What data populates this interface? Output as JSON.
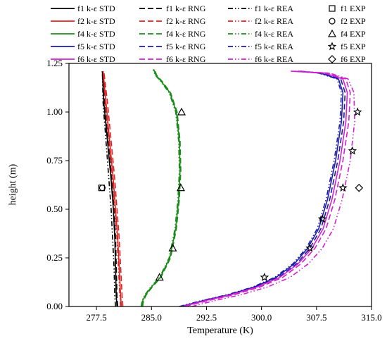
{
  "chart_data": {
    "type": "line",
    "xlabel": "Temperature (K)",
    "ylabel": "height (m)",
    "xlim": [
      273.75,
      315.0
    ],
    "ylim": [
      0.0,
      1.25
    ],
    "xticks": [
      "277.5",
      "285.0",
      "292.5",
      "300.0",
      "307.5",
      "315.0"
    ],
    "xtick_values": [
      277.5,
      285.0,
      292.5,
      300.0,
      307.5,
      315.0
    ],
    "yticks": [
      "0.00",
      "0.25",
      "0.50",
      "0.75",
      "1.00",
      "1.25"
    ],
    "ytick_values": [
      0.0,
      0.25,
      0.5,
      0.75,
      1.0,
      1.25
    ],
    "grid": false,
    "legend_position": "top",
    "colors": {
      "f1": "#000000",
      "f2": "#e02020",
      "f4": "#1a8c1a",
      "f5": "#1c1ca8",
      "f6": "#d21fd2"
    },
    "series": [
      {
        "name": "f1 k-ε STD",
        "case": "f1",
        "style": "solid",
        "x": [
          280.3,
          280.2,
          280.1,
          280.0,
          279.8,
          279.5,
          279.0,
          278.5,
          278.3
        ],
        "y": [
          0.0,
          0.05,
          0.2,
          0.35,
          0.5,
          0.65,
          0.85,
          1.05,
          1.21
        ]
      },
      {
        "name": "f1 k-ε RNG",
        "case": "f1",
        "style": "dash",
        "x": [
          280.4,
          280.3,
          280.2,
          280.1,
          279.9,
          279.6,
          279.1,
          278.6,
          278.35
        ],
        "y": [
          0.0,
          0.05,
          0.2,
          0.35,
          0.5,
          0.65,
          0.85,
          1.05,
          1.21
        ]
      },
      {
        "name": "f1 k-ε REA",
        "case": "f1",
        "style": "dashdotdot",
        "x": [
          280.1,
          280.0,
          279.9,
          279.7,
          279.5,
          279.2,
          278.8,
          278.4,
          278.3
        ],
        "y": [
          0.0,
          0.05,
          0.2,
          0.35,
          0.5,
          0.65,
          0.85,
          1.05,
          1.21
        ]
      },
      {
        "name": "f2 k-ε STD",
        "case": "f2",
        "style": "solid",
        "x": [
          280.9,
          280.8,
          280.6,
          280.4,
          280.1,
          279.8,
          279.3,
          278.8,
          278.4
        ],
        "y": [
          0.0,
          0.05,
          0.2,
          0.35,
          0.5,
          0.65,
          0.85,
          1.05,
          1.21
        ]
      },
      {
        "name": "f2 k-ε RNG",
        "case": "f2",
        "style": "dash",
        "x": [
          281.1,
          281.0,
          280.8,
          280.6,
          280.3,
          280.0,
          279.5,
          279.0,
          278.5
        ],
        "y": [
          0.0,
          0.05,
          0.2,
          0.35,
          0.5,
          0.65,
          0.85,
          1.05,
          1.21
        ]
      },
      {
        "name": "f2 k-ε REA",
        "case": "f2",
        "style": "dashdotdot",
        "x": [
          280.8,
          280.7,
          280.5,
          280.3,
          280.0,
          279.7,
          279.2,
          278.7,
          278.4
        ],
        "y": [
          0.0,
          0.05,
          0.2,
          0.35,
          0.5,
          0.65,
          0.85,
          1.05,
          1.21
        ]
      },
      {
        "name": "f4 k-ε STD",
        "case": "f4",
        "style": "solid",
        "x": [
          283.7,
          283.8,
          284.2,
          285.0,
          286.2,
          287.5,
          288.3,
          288.7,
          288.9,
          288.8,
          288.4,
          287.5,
          286.3,
          285.6,
          285.3
        ],
        "y": [
          0.0,
          0.03,
          0.06,
          0.1,
          0.15,
          0.25,
          0.4,
          0.55,
          0.7,
          0.85,
          1.0,
          1.1,
          1.16,
          1.19,
          1.22
        ]
      },
      {
        "name": "f4 k-ε RNG",
        "case": "f4",
        "style": "dash",
        "x": [
          283.8,
          283.9,
          284.3,
          285.1,
          286.3,
          287.6,
          288.4,
          288.8,
          289.0,
          288.9,
          288.5,
          287.6,
          286.4,
          285.7,
          285.4
        ],
        "y": [
          0.0,
          0.03,
          0.06,
          0.1,
          0.15,
          0.25,
          0.4,
          0.55,
          0.7,
          0.85,
          1.0,
          1.1,
          1.16,
          1.19,
          1.22
        ]
      },
      {
        "name": "f4 k-ε REA",
        "case": "f4",
        "style": "dashdotdot",
        "x": [
          283.6,
          283.7,
          284.1,
          284.9,
          286.1,
          287.4,
          288.2,
          288.6,
          288.8,
          288.7,
          288.3,
          287.4,
          286.2,
          285.5,
          285.2
        ],
        "y": [
          0.0,
          0.03,
          0.06,
          0.1,
          0.15,
          0.25,
          0.4,
          0.55,
          0.7,
          0.85,
          1.0,
          1.1,
          1.16,
          1.19,
          1.22
        ]
      },
      {
        "name": "f5 k-ε STD",
        "case": "f5",
        "style": "solid",
        "x": [
          289.0,
          292.0,
          295.5,
          299.0,
          302.0,
          304.5,
          306.3,
          307.8,
          309.0,
          310.1,
          310.9,
          311.1,
          310.5,
          308.0,
          305.0
        ],
        "y": [
          0.0,
          0.03,
          0.06,
          0.1,
          0.15,
          0.22,
          0.3,
          0.4,
          0.55,
          0.75,
          0.95,
          1.1,
          1.17,
          1.2,
          1.21
        ]
      },
      {
        "name": "f5 k-ε RNG",
        "case": "f5",
        "style": "dash",
        "x": [
          289.3,
          292.3,
          295.8,
          299.3,
          302.3,
          304.8,
          306.6,
          308.1,
          309.3,
          310.4,
          311.2,
          311.4,
          310.8,
          308.3,
          305.3
        ],
        "y": [
          0.0,
          0.03,
          0.06,
          0.1,
          0.15,
          0.22,
          0.3,
          0.4,
          0.55,
          0.75,
          0.95,
          1.1,
          1.17,
          1.2,
          1.21
        ]
      },
      {
        "name": "f5 k-ε REA",
        "case": "f5",
        "style": "dashdotdot",
        "x": [
          288.8,
          291.8,
          295.3,
          298.8,
          301.8,
          304.3,
          306.1,
          307.6,
          308.8,
          309.9,
          310.7,
          310.9,
          310.3,
          307.8,
          304.8
        ],
        "y": [
          0.0,
          0.03,
          0.06,
          0.1,
          0.15,
          0.22,
          0.3,
          0.4,
          0.55,
          0.75,
          0.95,
          1.1,
          1.17,
          1.2,
          1.21
        ]
      },
      {
        "name": "f6 k-ε STD",
        "case": "f6",
        "style": "solid",
        "x": [
          289.2,
          292.3,
          295.8,
          299.4,
          302.5,
          305.0,
          306.9,
          308.4,
          309.6,
          310.7,
          311.5,
          311.7,
          311.1,
          308.6,
          304.0
        ],
        "y": [
          0.0,
          0.03,
          0.06,
          0.1,
          0.15,
          0.22,
          0.3,
          0.4,
          0.55,
          0.75,
          0.95,
          1.1,
          1.17,
          1.2,
          1.21
        ]
      },
      {
        "name": "f6 k-ε RNG",
        "case": "f6",
        "style": "dash",
        "x": [
          289.6,
          292.7,
          296.2,
          299.8,
          302.9,
          305.4,
          307.3,
          308.8,
          310.0,
          311.1,
          311.9,
          312.1,
          311.5,
          309.0,
          304.4
        ],
        "y": [
          0.0,
          0.03,
          0.06,
          0.1,
          0.15,
          0.22,
          0.3,
          0.4,
          0.55,
          0.75,
          0.95,
          1.1,
          1.17,
          1.2,
          1.21
        ]
      },
      {
        "name": "f6 k-ε REA",
        "case": "f6",
        "style": "dashdotdot",
        "x": [
          290.5,
          293.6,
          297.2,
          300.8,
          303.9,
          306.4,
          308.3,
          309.8,
          311.0,
          312.1,
          312.7,
          312.6,
          311.8,
          309.3,
          304.7
        ],
        "y": [
          0.0,
          0.03,
          0.06,
          0.1,
          0.15,
          0.22,
          0.3,
          0.4,
          0.55,
          0.75,
          0.95,
          1.1,
          1.17,
          1.2,
          1.21
        ]
      }
    ],
    "experimental": [
      {
        "name": "f1 EXP",
        "case": "f1",
        "marker": "square",
        "x": [
          278.2
        ],
        "y": [
          0.61
        ]
      },
      {
        "name": "f2 EXP",
        "case": "f2",
        "marker": "circle",
        "x": [
          278.3
        ],
        "y": [
          0.61
        ]
      },
      {
        "name": "f4 EXP",
        "case": "f4",
        "marker": "triangle",
        "x": [
          286.1,
          287.9,
          289.0,
          289.1
        ],
        "y": [
          0.15,
          0.3,
          0.61,
          1.0
        ]
      },
      {
        "name": "f5 EXP",
        "case": "f5",
        "marker": "star",
        "x": [
          300.4,
          306.6,
          308.3,
          311.1,
          312.4,
          313.1
        ],
        "y": [
          0.15,
          0.3,
          0.45,
          0.61,
          0.8,
          1.0
        ]
      },
      {
        "name": "f6 EXP",
        "case": "f6",
        "marker": "diamond",
        "x": [
          313.3
        ],
        "y": [
          0.61
        ]
      }
    ],
    "legend": [
      [
        "f1 k-ε STD",
        "f1 k-ε RNG",
        "f1 k-ε REA",
        "f1 EXP"
      ],
      [
        "f2 k-ε STD",
        "f2 k-ε RNG",
        "f2 k-ε REA",
        "f2 EXP"
      ],
      [
        "f4 k-ε STD",
        "f4 k-ε RNG",
        "f4 k-ε REA",
        "f4 EXP"
      ],
      [
        "f5 k-ε STD",
        "f5 k-ε RNG",
        "f5 k-ε REA",
        "f5 EXP"
      ],
      [
        "f6  k-ε  STD",
        "f6 k-ε RNG",
        "f6 k-ε REA",
        "f6 EXP"
      ]
    ]
  }
}
